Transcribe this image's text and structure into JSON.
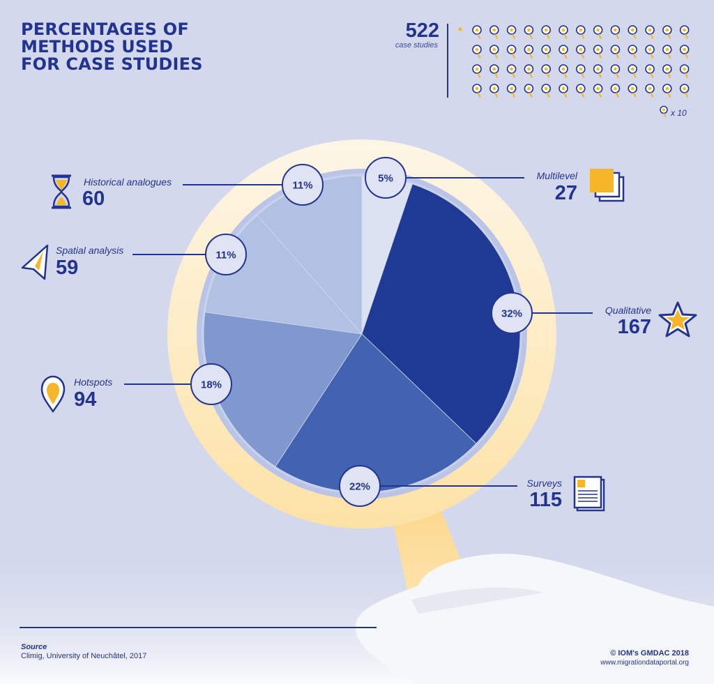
{
  "title_lines": [
    "PERCENTAGES OF",
    "METHODS USED",
    "FOR CASE STUDIES"
  ],
  "total": {
    "value": "522",
    "caption": "case studies",
    "unit_note": "x 10"
  },
  "source": {
    "title": "Source",
    "text": "Climig, University of Neuchâtel, 2017"
  },
  "credit": {
    "line1": "© IOM's GMDAC 2018",
    "line2": "www.migrationdataportal.org"
  },
  "colors": {
    "background": "#d3d8ec",
    "accent": "#22348f",
    "highlight": "#f7b529",
    "magnifier_rim": "#fde9bf"
  },
  "chart_data": {
    "type": "pie",
    "title": "PERCENTAGES OF METHODS USED FOR CASE STUDIES",
    "total": 522,
    "slices": [
      {
        "name": "Multilevel",
        "count": "27",
        "value": 27,
        "percent_label": "5%",
        "color": "#dde2f3",
        "icon": "stacked-squares-icon"
      },
      {
        "name": "Qualitative",
        "count": "167",
        "value": 167,
        "percent_label": "32%",
        "color": "#1f3a94",
        "icon": "star-icon"
      },
      {
        "name": "Surveys",
        "count": "115",
        "value": 115,
        "percent_label": "22%",
        "color": "#4163b1",
        "icon": "document-icon"
      },
      {
        "name": "Hotspots",
        "count": "94",
        "value": 94,
        "percent_label": "18%",
        "color": "#7f98ce",
        "icon": "map-pin-icon"
      },
      {
        "name": "Spatial analysis",
        "count": "59",
        "value": 59,
        "percent_label": "11%",
        "color": "#b1c1e3",
        "icon": "navigation-arrow-icon"
      },
      {
        "name": "Historical analogues",
        "count": "60",
        "value": 60,
        "percent_label": "11%",
        "color": "#b1c1e3",
        "icon": "hourglass-icon"
      }
    ]
  }
}
